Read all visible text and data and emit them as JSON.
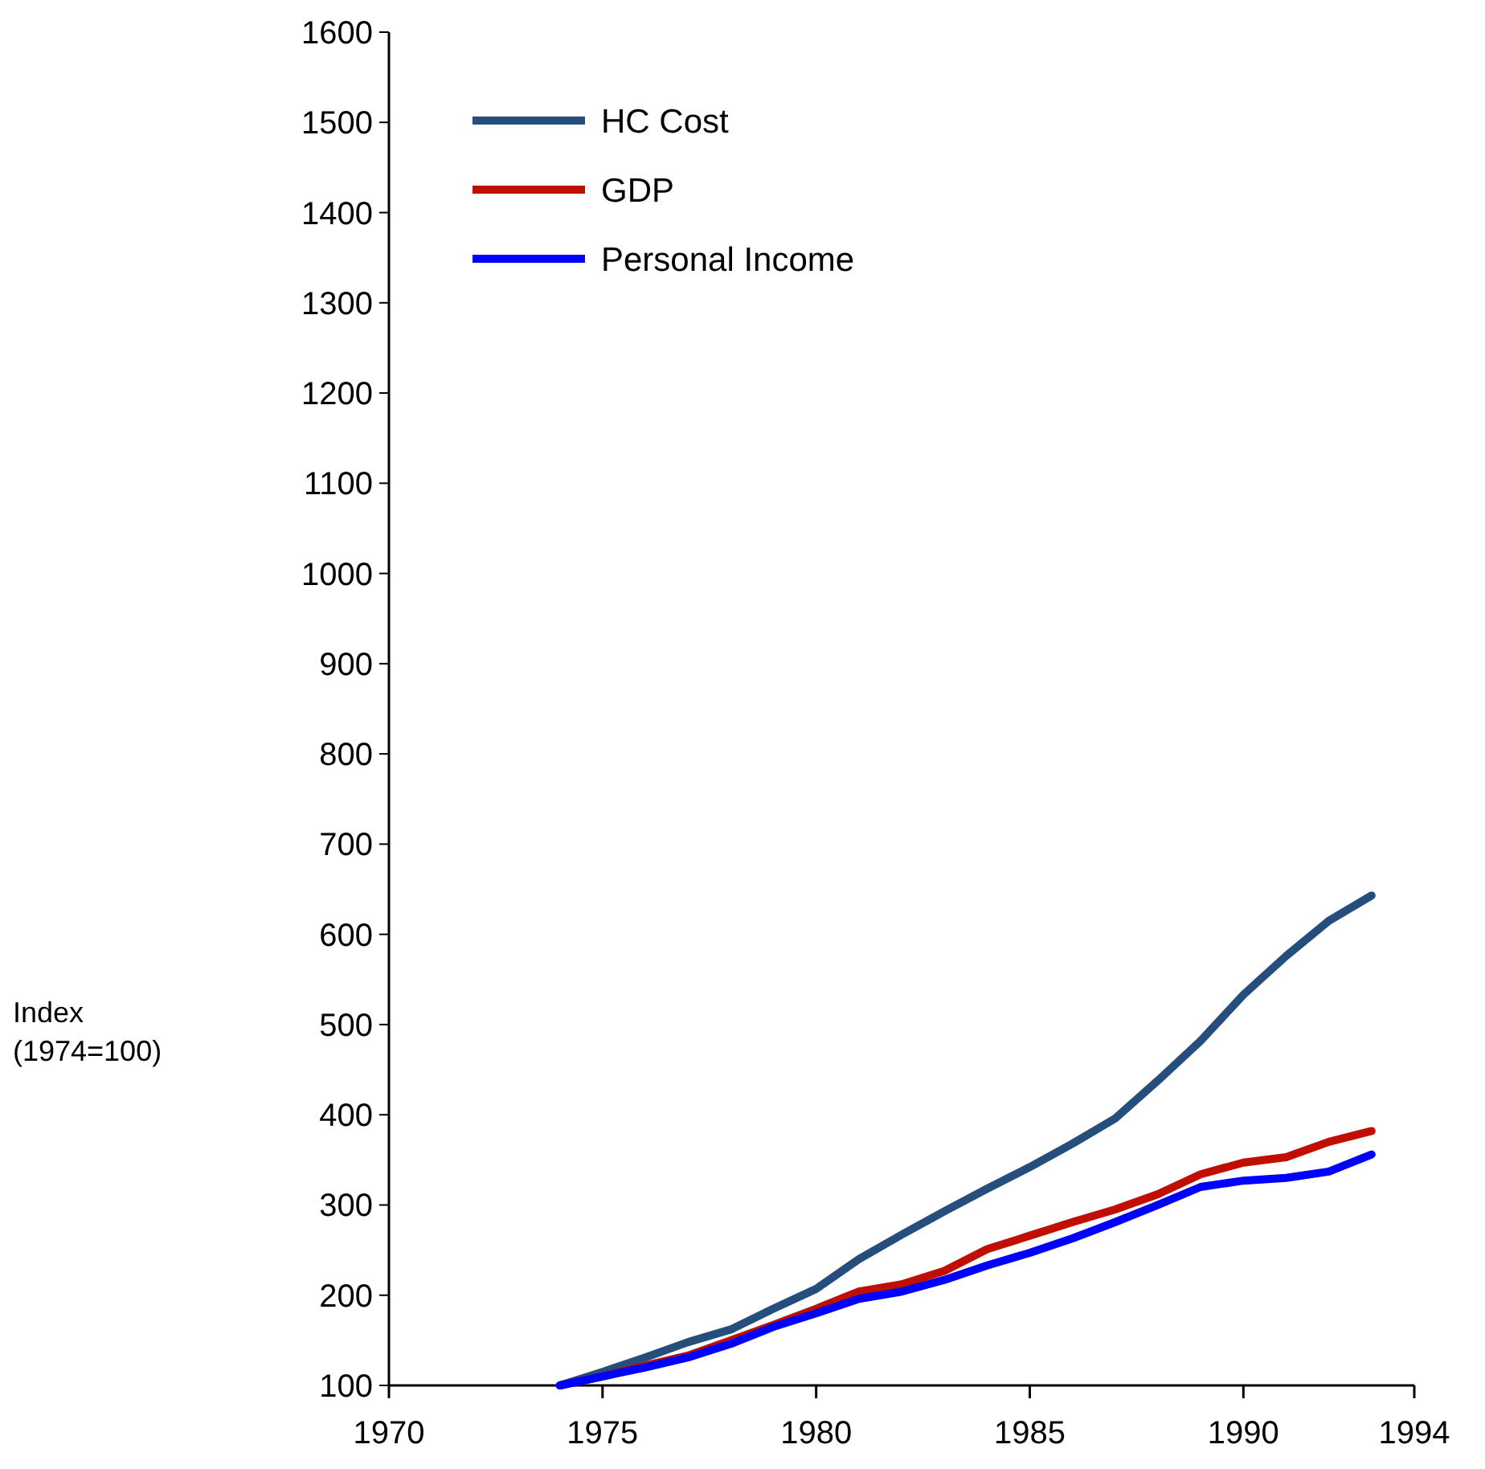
{
  "chart_data": {
    "type": "line",
    "annotations": [
      "Index\n(1974=100)"
    ],
    "x": [
      1974,
      1975,
      1976,
      1977,
      1978,
      1979,
      1980,
      1981,
      1982,
      1983,
      1984,
      1985,
      1986,
      1987,
      1988,
      1989,
      1990,
      1991,
      1992,
      1993
    ],
    "series": [
      {
        "name": "HC Cost",
        "color": "#254e7d",
        "values": [
          100,
          115,
          131,
          148,
          162,
          185,
          207,
          240,
          267,
          293,
          318,
          342,
          368,
          396,
          438,
          482,
          533,
          576,
          615,
          643
        ]
      },
      {
        "name": "GDP",
        "color": "#c00f00",
        "values": [
          100,
          110,
          122,
          133,
          150,
          167,
          185,
          204,
          212,
          227,
          251,
          266,
          281,
          295,
          312,
          334,
          347,
          353,
          370,
          382
        ]
      },
      {
        "name": "Personal Income",
        "color": "#0000ff",
        "values": [
          100,
          110,
          120,
          131,
          146,
          165,
          180,
          196,
          204,
          217,
          233,
          247,
          263,
          281,
          300,
          320,
          327,
          330,
          337,
          356
        ]
      }
    ],
    "xlim": [
      1970,
      1994
    ],
    "xticks": [
      1970,
      1975,
      1980,
      1985,
      1990,
      1994
    ],
    "ylim": [
      100,
      1600
    ],
    "yticks": [
      100,
      200,
      300,
      400,
      500,
      600,
      700,
      800,
      900,
      1000,
      1100,
      1200,
      1300,
      1400,
      1500,
      1600
    ],
    "grid": false,
    "legend": "top left",
    "line_style": "solid",
    "marker": "none"
  }
}
